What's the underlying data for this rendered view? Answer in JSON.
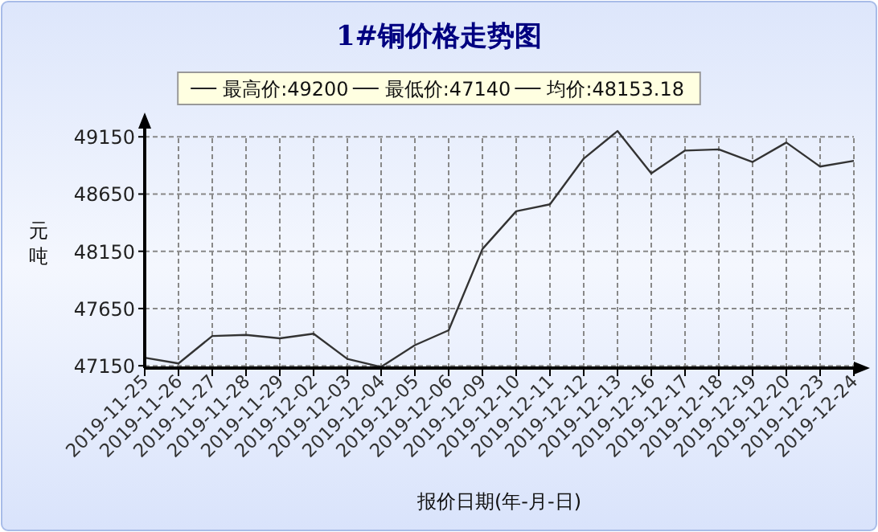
{
  "chart_data": {
    "type": "line",
    "title": "1#铜价格走势图",
    "xlabel": "报价日期(年-月-日)",
    "ylabel": "元吨",
    "categories": [
      "2019-11-25",
      "2019-11-26",
      "2019-11-27",
      "2019-11-28",
      "2019-11-29",
      "2019-12-02",
      "2019-12-03",
      "2019-12-04",
      "2019-12-05",
      "2019-12-06",
      "2019-12-09",
      "2019-12-10",
      "2019-12-11",
      "2019-12-12",
      "2019-12-13",
      "2019-12-16",
      "2019-12-17",
      "2019-12-18",
      "2019-12-19",
      "2019-12-20",
      "2019-12-23",
      "2019-12-24"
    ],
    "series": [
      {
        "color": "#333333",
        "values": [
          47220,
          47170,
          47410,
          47420,
          47390,
          47430,
          47210,
          47140,
          47330,
          47460,
          48170,
          48500,
          48560,
          48960,
          49200,
          48830,
          49030,
          49040,
          48930,
          49100,
          48890,
          48940
        ]
      }
    ],
    "ylim": [
      47130,
      49250
    ],
    "yticks": [
      47150,
      47650,
      48150,
      48650,
      49150
    ],
    "grid": true,
    "marker": "none",
    "line_style": "solid",
    "annotations": [
      "最高价:49200",
      "最低价:47140",
      "均价:48153.18"
    ]
  }
}
